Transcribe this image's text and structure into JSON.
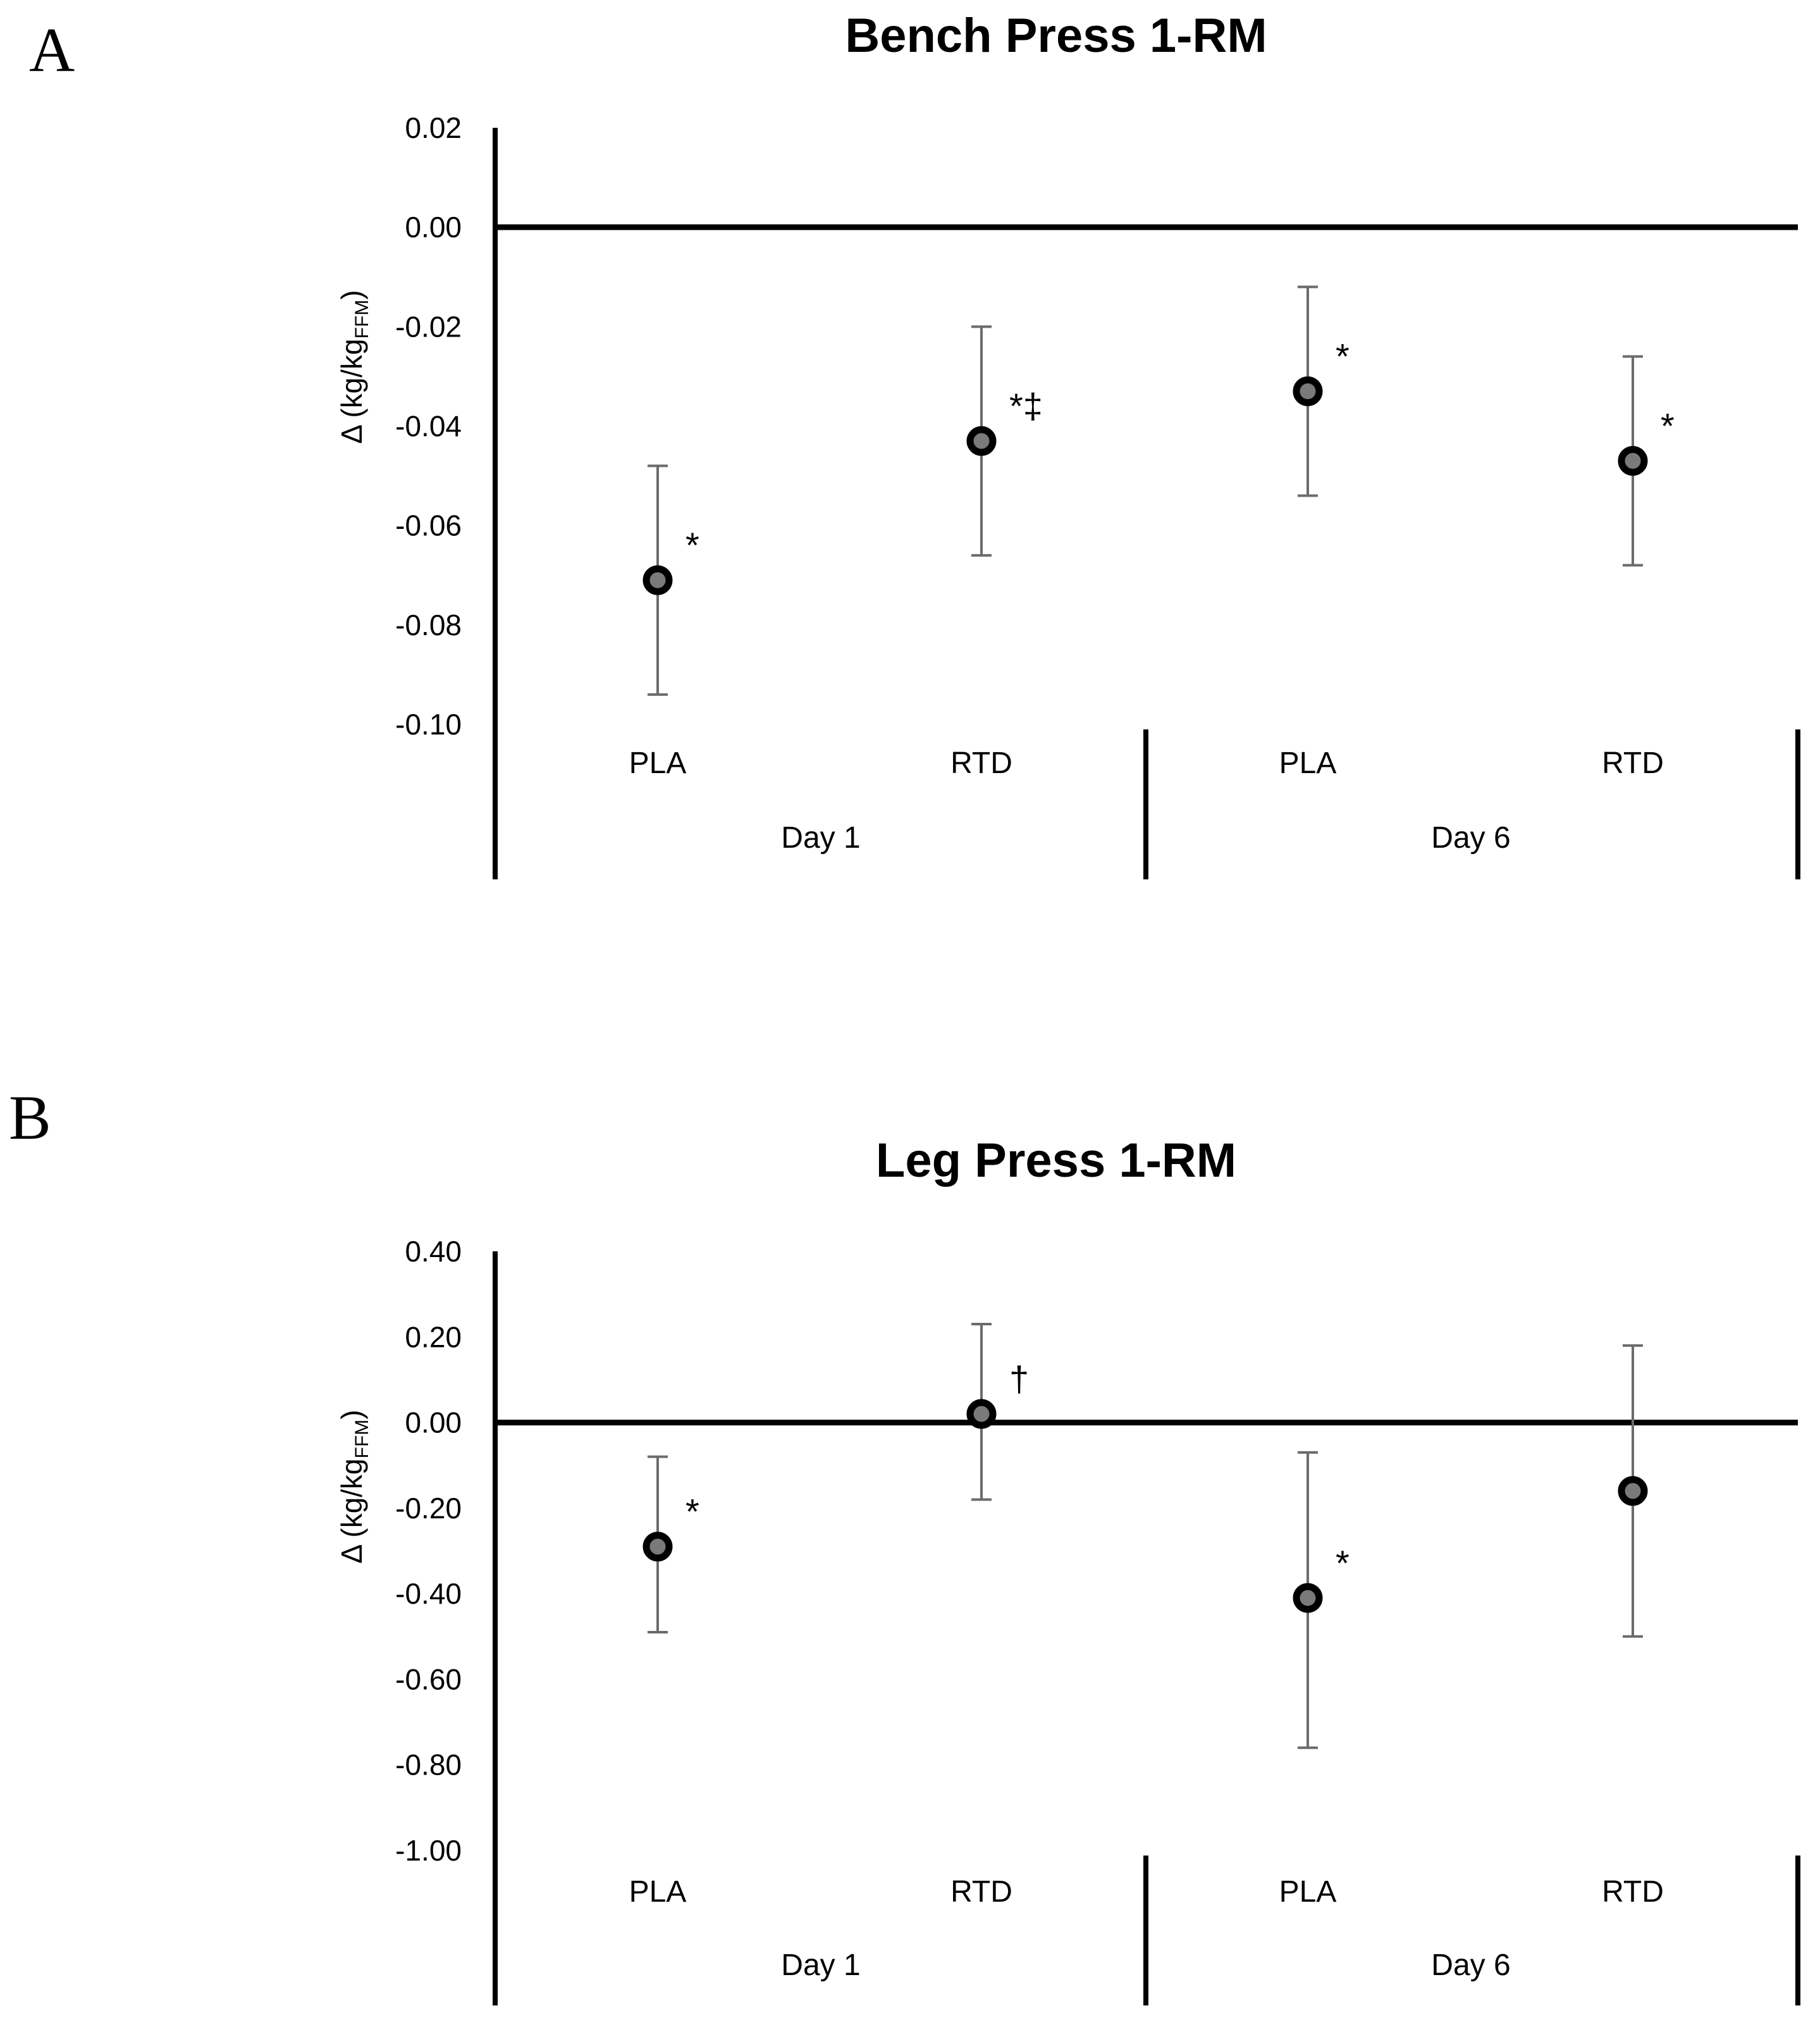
{
  "chart_data": [
    {
      "panel": "A",
      "type": "scatter",
      "title": "Bench Press 1-RM",
      "ylabel_main": "Δ (kg/kg",
      "ylabel_sub": "FFM",
      "ylabel_close": ")",
      "ylim": [
        -0.1,
        0.02
      ],
      "yticks": [
        0.02,
        0.0,
        -0.02,
        -0.04,
        -0.06,
        -0.08,
        -0.1
      ],
      "ytick_labels": [
        "0.02",
        "0.00",
        "-0.02",
        "-0.04",
        "-0.06",
        "-0.08",
        "-0.10"
      ],
      "groups": [
        "Day 1",
        "Day 6"
      ],
      "categories": [
        "PLA",
        "RTD",
        "PLA",
        "RTD"
      ],
      "points": [
        {
          "group": "Day 1",
          "category": "PLA",
          "mean": -0.071,
          "err_low": -0.094,
          "err_high": -0.048,
          "annotation": "*"
        },
        {
          "group": "Day 1",
          "category": "RTD",
          "mean": -0.043,
          "err_low": -0.066,
          "err_high": -0.02,
          "annotation": "*‡"
        },
        {
          "group": "Day 6",
          "category": "PLA",
          "mean": -0.033,
          "err_low": -0.054,
          "err_high": -0.012,
          "annotation": "*"
        },
        {
          "group": "Day 6",
          "category": "RTD",
          "mean": -0.047,
          "err_low": -0.068,
          "err_high": -0.026,
          "annotation": "*"
        }
      ]
    },
    {
      "panel": "B",
      "type": "scatter",
      "title": "Leg Press 1-RM",
      "ylabel_main": "Δ (kg/kg",
      "ylabel_sub": "FFM",
      "ylabel_close": ")",
      "ylim": [
        -1.0,
        0.4
      ],
      "yticks": [
        0.4,
        0.2,
        0.0,
        -0.2,
        -0.4,
        -0.6,
        -0.8,
        -1.0
      ],
      "ytick_labels": [
        "0.40",
        "0.20",
        "0.00",
        "-0.20",
        "-0.40",
        "-0.60",
        "-0.80",
        "-1.00"
      ],
      "groups": [
        "Day 1",
        "Day 6"
      ],
      "categories": [
        "PLA",
        "RTD",
        "PLA",
        "RTD"
      ],
      "points": [
        {
          "group": "Day 1",
          "category": "PLA",
          "mean": -0.29,
          "err_low": -0.49,
          "err_high": -0.08,
          "annotation": "*"
        },
        {
          "group": "Day 1",
          "category": "RTD",
          "mean": 0.02,
          "err_low": -0.18,
          "err_high": 0.23,
          "annotation": "†"
        },
        {
          "group": "Day 6",
          "category": "PLA",
          "mean": -0.41,
          "err_low": -0.76,
          "err_high": -0.07,
          "annotation": "*"
        },
        {
          "group": "Day 6",
          "category": "RTD",
          "mean": -0.16,
          "err_low": -0.5,
          "err_high": 0.18,
          "annotation": ""
        }
      ]
    }
  ]
}
